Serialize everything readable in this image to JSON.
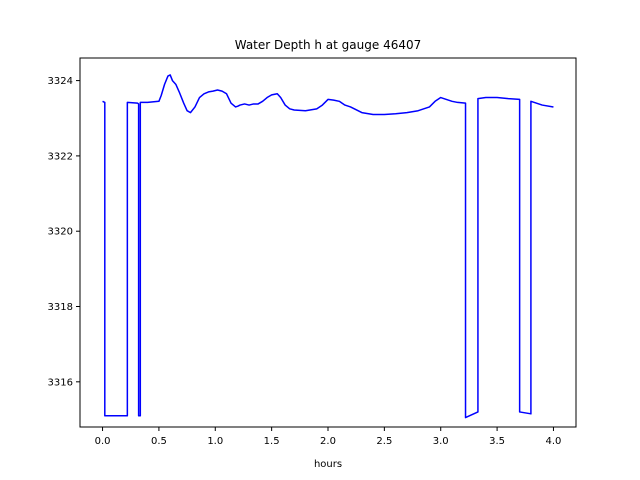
{
  "chart_data": {
    "type": "line",
    "title": "Water Depth h at gauge 46407",
    "xlabel": "hours",
    "ylabel": "",
    "xlim": [
      -0.2,
      4.2
    ],
    "ylim": [
      3314.8,
      3324.6
    ],
    "xticks": [
      0.0,
      0.5,
      1.0,
      1.5,
      2.0,
      2.5,
      3.0,
      3.5,
      4.0
    ],
    "xtick_labels": [
      "0.0",
      "0.5",
      "1.0",
      "1.5",
      "2.0",
      "2.5",
      "3.0",
      "3.5",
      "4.0"
    ],
    "yticks": [
      3316,
      3318,
      3320,
      3322,
      3324
    ],
    "ytick_labels": [
      "3316",
      "3318",
      "3320",
      "3322",
      "3324"
    ],
    "grid": false,
    "series": [
      {
        "color": "#0000ff",
        "x": [
          0.0,
          0.02,
          0.02,
          0.22,
          0.22,
          0.31,
          0.32,
          0.32,
          0.335,
          0.335,
          0.4,
          0.5,
          0.52,
          0.55,
          0.58,
          0.6,
          0.62,
          0.65,
          0.68,
          0.72,
          0.75,
          0.78,
          0.82,
          0.86,
          0.9,
          0.94,
          0.98,
          1.02,
          1.06,
          1.1,
          1.14,
          1.18,
          1.2,
          1.22,
          1.26,
          1.3,
          1.34,
          1.38,
          1.42,
          1.46,
          1.5,
          1.55,
          1.58,
          1.62,
          1.66,
          1.7,
          1.8,
          1.9,
          1.95,
          2.0,
          2.05,
          2.1,
          2.15,
          2.2,
          2.3,
          2.4,
          2.5,
          2.6,
          2.7,
          2.8,
          2.9,
          2.95,
          3.0,
          3.05,
          3.1,
          3.15,
          3.22,
          3.22,
          3.33,
          3.33,
          3.4,
          3.5,
          3.6,
          3.7,
          3.7,
          3.8,
          3.8,
          3.9,
          4.0
        ],
        "y": [
          3323.45,
          3323.42,
          3315.1,
          3315.1,
          3323.42,
          3323.4,
          3323.38,
          3315.1,
          3315.1,
          3323.42,
          3323.42,
          3323.45,
          3323.6,
          3323.9,
          3324.12,
          3324.15,
          3324.0,
          3323.9,
          3323.7,
          3323.4,
          3323.2,
          3323.15,
          3323.3,
          3323.55,
          3323.65,
          3323.7,
          3323.72,
          3323.75,
          3323.72,
          3323.65,
          3323.4,
          3323.3,
          3323.32,
          3323.35,
          3323.38,
          3323.35,
          3323.38,
          3323.38,
          3323.45,
          3323.55,
          3323.62,
          3323.65,
          3323.55,
          3323.35,
          3323.25,
          3323.22,
          3323.2,
          3323.25,
          3323.35,
          3323.5,
          3323.48,
          3323.45,
          3323.35,
          3323.3,
          3323.15,
          3323.1,
          3323.1,
          3323.12,
          3323.15,
          3323.2,
          3323.3,
          3323.45,
          3323.55,
          3323.5,
          3323.45,
          3323.42,
          3323.4,
          3315.05,
          3315.2,
          3323.52,
          3323.55,
          3323.55,
          3323.52,
          3323.5,
          3315.2,
          3315.15,
          3323.45,
          3323.35,
          3323.3
        ]
      }
    ]
  }
}
